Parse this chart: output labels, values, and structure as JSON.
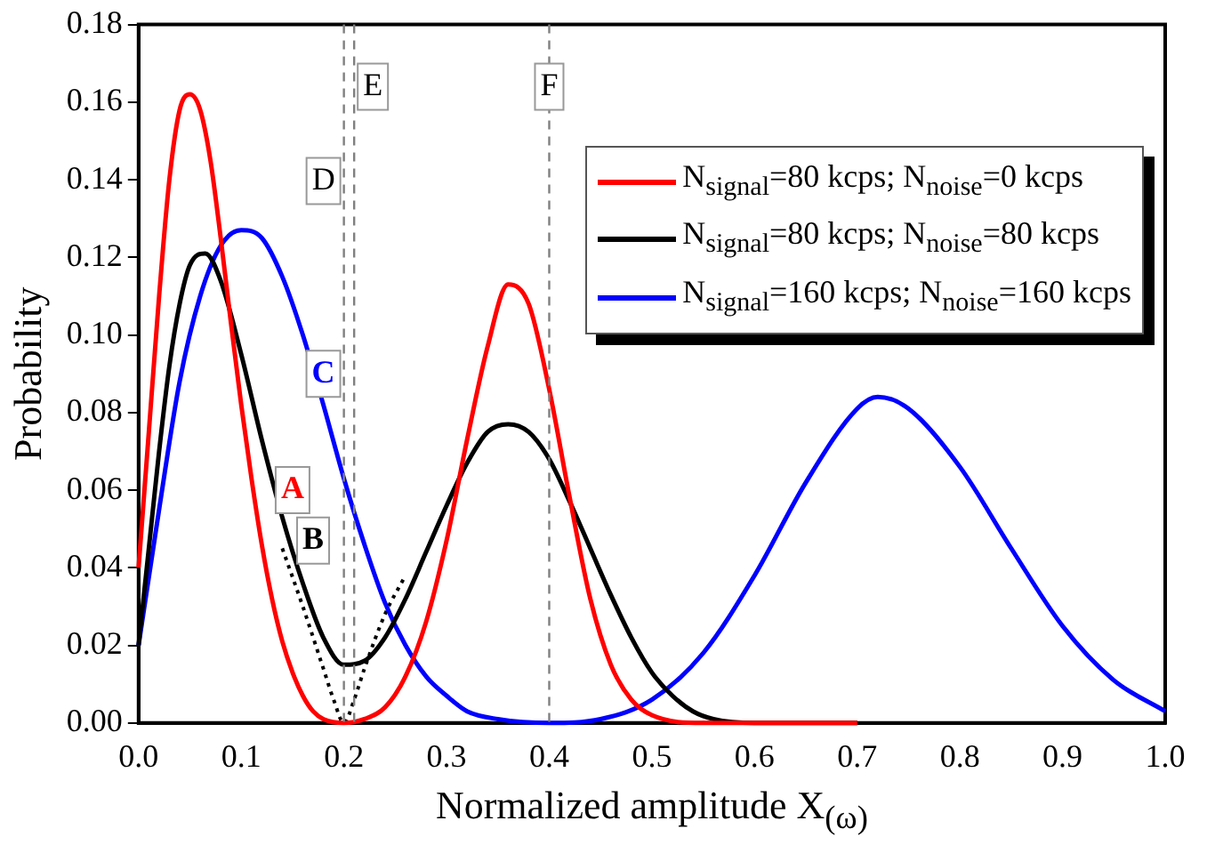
{
  "chart_data": {
    "type": "line",
    "xlabel": "Normalized amplitude X$_{(ω)}$",
    "ylabel": "Probability",
    "xlim": [
      0,
      1
    ],
    "xticks": [
      {
        "value": 0,
        "label": "0.0"
      },
      0.1,
      0.2,
      0.3,
      0.4,
      0.5,
      0.6,
      0.7,
      0.8,
      0.9,
      {
        "value": 1,
        "label": "1.0"
      }
    ],
    "ylim": [
      0,
      0.18
    ],
    "yticks": [
      {
        "value": 0,
        "label": "0.00"
      },
      {
        "value": 0.02,
        "label": "0.02"
      },
      {
        "value": 0.04,
        "label": "0.04"
      },
      {
        "value": 0.06,
        "label": "0.06"
      },
      {
        "value": 0.08,
        "label": "0.08"
      },
      {
        "value": 0.1,
        "label": "0.10"
      },
      {
        "value": 0.12,
        "label": "0.12"
      },
      {
        "value": 0.14,
        "label": "0.14"
      },
      {
        "value": 0.16,
        "label": "0.16"
      },
      {
        "value": 0.18,
        "label": "0.18"
      }
    ],
    "grid": false,
    "legend": "top right",
    "marker": "none",
    "series": [
      {
        "name": "N$_{signal}$=80 kcps; N$_{noise}$=0 kcps",
        "color": "#ff0000",
        "x": [
          0,
          0.01,
          0.02,
          0.03,
          0.04,
          0.05,
          0.06,
          0.07,
          0.08,
          0.09,
          0.1,
          0.11,
          0.12,
          0.13,
          0.14,
          0.15,
          0.16,
          0.17,
          0.18,
          0.2,
          0.22,
          0.24,
          0.26,
          0.28,
          0.3,
          0.32,
          0.34,
          0.36,
          0.38,
          0.4,
          0.42,
          0.44,
          0.46,
          0.48,
          0.5,
          0.55,
          0.6,
          0.7
        ],
        "values": [
          0.04,
          0.075,
          0.11,
          0.14,
          0.158,
          0.162,
          0.158,
          0.145,
          0.125,
          0.103,
          0.082,
          0.063,
          0.046,
          0.032,
          0.021,
          0.013,
          0.007,
          0.003,
          0.001,
          0,
          0.001,
          0.004,
          0.012,
          0.026,
          0.047,
          0.073,
          0.097,
          0.113,
          0.108,
          0.086,
          0.058,
          0.032,
          0.015,
          0.006,
          0.002,
          0,
          0,
          0
        ]
      },
      {
        "name": "N$_{signal}$=80 kcps; N$_{noise}$=80 kcps",
        "color": "#000000",
        "x": [
          0,
          0.01,
          0.02,
          0.03,
          0.04,
          0.05,
          0.065,
          0.08,
          0.1,
          0.12,
          0.14,
          0.16,
          0.18,
          0.2,
          0.22,
          0.24,
          0.26,
          0.28,
          0.3,
          0.32,
          0.34,
          0.36,
          0.38,
          0.4,
          0.42,
          0.44,
          0.46,
          0.48,
          0.5,
          0.52,
          0.54,
          0.56,
          0.6,
          0.65,
          0.7
        ],
        "values": [
          0.02,
          0.045,
          0.07,
          0.092,
          0.108,
          0.118,
          0.121,
          0.114,
          0.095,
          0.073,
          0.053,
          0.036,
          0.022,
          0.015,
          0.016,
          0.022,
          0.032,
          0.044,
          0.056,
          0.067,
          0.075,
          0.077,
          0.075,
          0.068,
          0.057,
          0.045,
          0.033,
          0.022,
          0.013,
          0.007,
          0.003,
          0.001,
          0,
          0,
          0
        ]
      },
      {
        "name": "N$_{signal}$=160 kcps; N$_{noise}$=160 kcps",
        "color": "#0000ff",
        "x": [
          0,
          0.02,
          0.04,
          0.06,
          0.08,
          0.1,
          0.12,
          0.14,
          0.16,
          0.18,
          0.2,
          0.22,
          0.24,
          0.26,
          0.28,
          0.3,
          0.32,
          0.35,
          0.4,
          0.45,
          0.5,
          0.55,
          0.6,
          0.65,
          0.7,
          0.72,
          0.75,
          0.8,
          0.85,
          0.9,
          0.95,
          1
        ],
        "values": [
          0.02,
          0.055,
          0.088,
          0.11,
          0.123,
          0.127,
          0.125,
          0.115,
          0.1,
          0.082,
          0.063,
          0.046,
          0.031,
          0.02,
          0.012,
          0.007,
          0.003,
          0.001,
          0,
          0.001,
          0.006,
          0.018,
          0.038,
          0.062,
          0.081,
          0.084,
          0.081,
          0.066,
          0.045,
          0.025,
          0.011,
          0.003
        ]
      },
      {
        "color": "#000000",
        "line_style": "dotted",
        "x": [
          0.14,
          0.16,
          0.18,
          0.19,
          0.2,
          0.21,
          0.22,
          0.24,
          0.26
        ],
        "values": [
          0.045,
          0.03,
          0.014,
          0.006,
          0,
          0.006,
          0.014,
          0.028,
          0.038
        ]
      }
    ],
    "ref_lines": [
      {
        "axis": "x",
        "value": 0.2,
        "label": "D",
        "color": "#808080",
        "line_style": "dashed"
      },
      {
        "axis": "x",
        "value": 0.21,
        "label": "E",
        "color": "#808080",
        "line_style": "dashed"
      },
      {
        "axis": "x",
        "value": 0.4,
        "label": "F",
        "color": "#808080",
        "line_style": "dashed"
      }
    ],
    "annotations": [
      {
        "text": "A",
        "x": 0.15,
        "y": 0.06
      },
      {
        "text": "B",
        "x": 0.17,
        "y": 0.047
      },
      {
        "text": "C",
        "x": 0.18,
        "y": 0.09
      }
    ]
  }
}
